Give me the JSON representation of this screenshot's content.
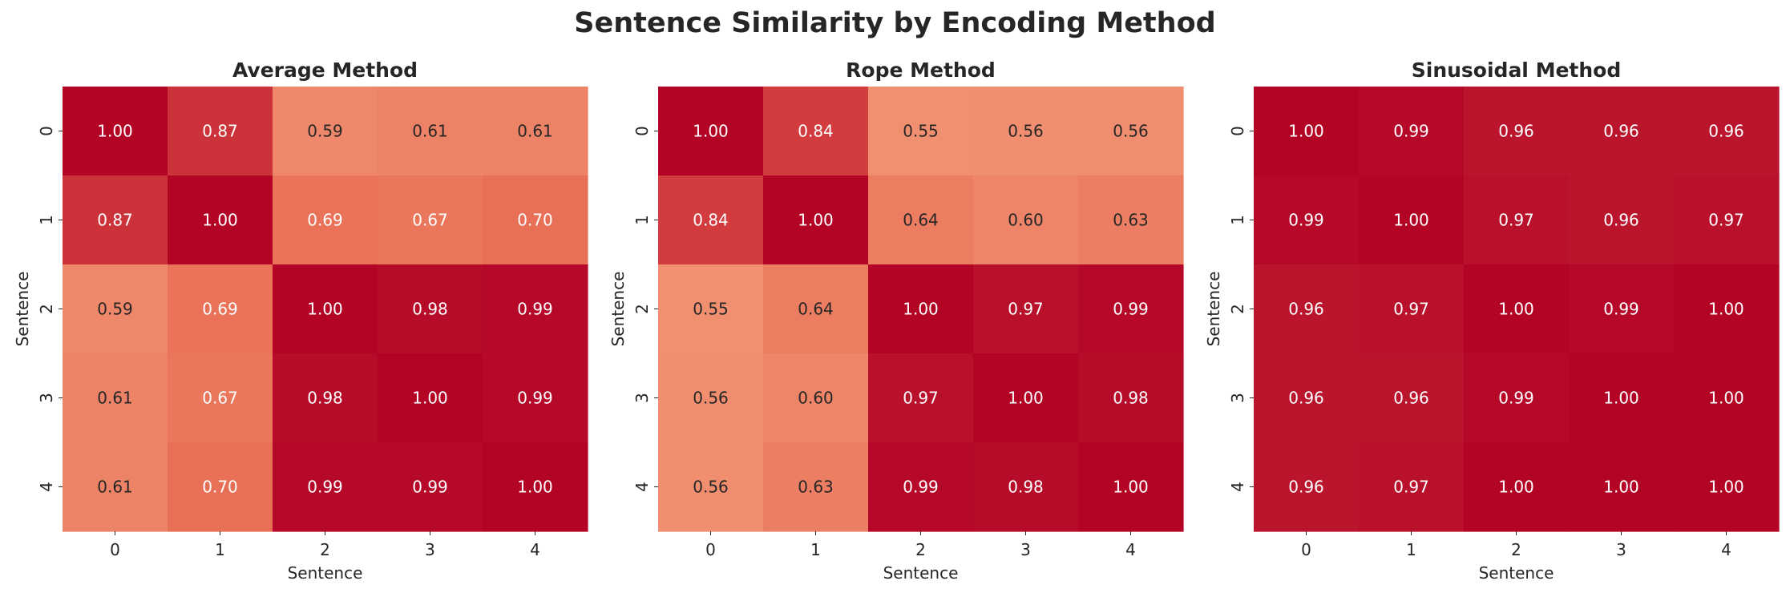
{
  "chart_data": {
    "type": "heatmap",
    "title": "Sentence Similarity by Encoding Method",
    "colormap": "coolwarm",
    "value_range": [
      -1,
      1
    ],
    "colorbar": false,
    "panels": [
      {
        "title": "Average Method",
        "xlabel": "Sentence",
        "ylabel": "Sentence",
        "x_ticks": [
          "0",
          "1",
          "2",
          "3",
          "4"
        ],
        "y_ticks": [
          "0",
          "1",
          "2",
          "3",
          "4"
        ],
        "values": [
          [
            1.0,
            0.87,
            0.59,
            0.61,
            0.61
          ],
          [
            0.87,
            1.0,
            0.69,
            0.67,
            0.7
          ],
          [
            0.59,
            0.69,
            1.0,
            0.98,
            0.99
          ],
          [
            0.61,
            0.67,
            0.98,
            1.0,
            0.99
          ],
          [
            0.61,
            0.7,
            0.99,
            0.99,
            1.0
          ]
        ]
      },
      {
        "title": "Rope Method",
        "xlabel": "Sentence",
        "ylabel": "Sentence",
        "x_ticks": [
          "0",
          "1",
          "2",
          "3",
          "4"
        ],
        "y_ticks": [
          "0",
          "1",
          "2",
          "3",
          "4"
        ],
        "values": [
          [
            1.0,
            0.84,
            0.55,
            0.56,
            0.56
          ],
          [
            0.84,
            1.0,
            0.64,
            0.6,
            0.63
          ],
          [
            0.55,
            0.64,
            1.0,
            0.97,
            0.99
          ],
          [
            0.56,
            0.6,
            0.97,
            1.0,
            0.98
          ],
          [
            0.56,
            0.63,
            0.99,
            0.98,
            1.0
          ]
        ]
      },
      {
        "title": "Sinusoidal Method",
        "xlabel": "Sentence",
        "ylabel": "Sentence",
        "x_ticks": [
          "0",
          "1",
          "2",
          "3",
          "4"
        ],
        "y_ticks": [
          "0",
          "1",
          "2",
          "3",
          "4"
        ],
        "values": [
          [
            1.0,
            0.99,
            0.96,
            0.96,
            0.96
          ],
          [
            0.99,
            1.0,
            0.97,
            0.96,
            0.97
          ],
          [
            0.96,
            0.97,
            1.0,
            0.99,
            1.0
          ],
          [
            0.96,
            0.96,
            0.99,
            1.0,
            1.0
          ],
          [
            0.96,
            0.97,
            1.0,
            1.0,
            1.0
          ]
        ]
      }
    ]
  }
}
